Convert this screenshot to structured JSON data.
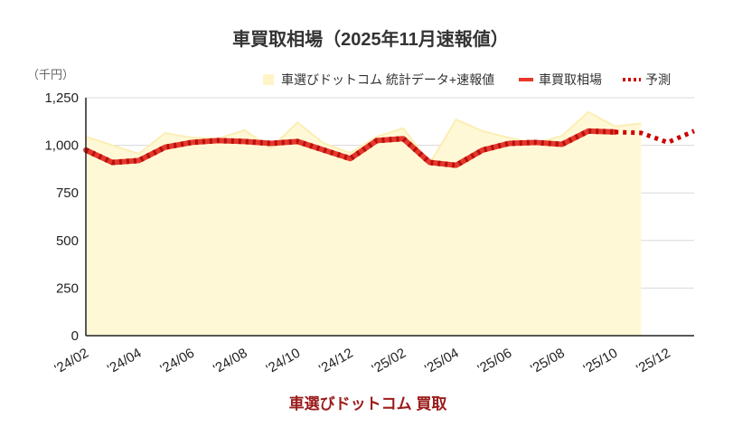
{
  "chart_data": {
    "type": "line",
    "title": "車買取相場（2025年11月速報値）",
    "unit_label": "（千円）",
    "footer": "車選びドットコム 買取",
    "ylim": [
      0,
      1250
    ],
    "yticks": [
      "0",
      "250",
      "500",
      "750",
      "1,000",
      "1,250"
    ],
    "grid": true,
    "legend_position": "top-right",
    "x": [
      "2024-02",
      "2024-03",
      "2024-04",
      "2024-05",
      "2024-06",
      "2024-07",
      "2024-08",
      "2024-09",
      "2024-10",
      "2024-11",
      "2024-12",
      "2025-01",
      "2025-02",
      "2025-03",
      "2025-04",
      "2025-05",
      "2025-06",
      "2025-07",
      "2025-08",
      "2025-09",
      "2025-10",
      "2025-11",
      "2025-12",
      "2026-01"
    ],
    "x_tick_labels": [
      "'24/02",
      "'24/04",
      "'24/06",
      "'24/08",
      "'24/10",
      "'24/12",
      "'25/02",
      "'25/04",
      "'25/06",
      "'25/08",
      "'25/10",
      "'25/12"
    ],
    "series": [
      {
        "name": "車選びドットコム 統計データ+速報値",
        "style": "area",
        "color": "#fff8d6",
        "edge_color": "#fbeeb5",
        "values": [
          1045,
          1000,
          955,
          1065,
          1040,
          1035,
          1080,
          985,
          1120,
          1010,
          960,
          1045,
          1090,
          905,
          1135,
          1075,
          1040,
          1010,
          1050,
          1175,
          1100,
          1115,
          null,
          null
        ]
      },
      {
        "name": "車買取相場",
        "style": "line",
        "color": "#e8372a",
        "values": [
          975,
          910,
          920,
          990,
          1015,
          1025,
          1020,
          1010,
          1020,
          975,
          930,
          1025,
          1035,
          910,
          895,
          975,
          1010,
          1015,
          1005,
          1075,
          1070,
          null,
          null,
          null
        ]
      },
      {
        "name": "予測",
        "style": "dotted",
        "color": "#cc0000",
        "values": [
          null,
          null,
          null,
          null,
          null,
          null,
          null,
          null,
          null,
          null,
          null,
          null,
          null,
          null,
          null,
          null,
          null,
          null,
          null,
          null,
          1070,
          1065,
          1015,
          1075
        ]
      }
    ]
  }
}
